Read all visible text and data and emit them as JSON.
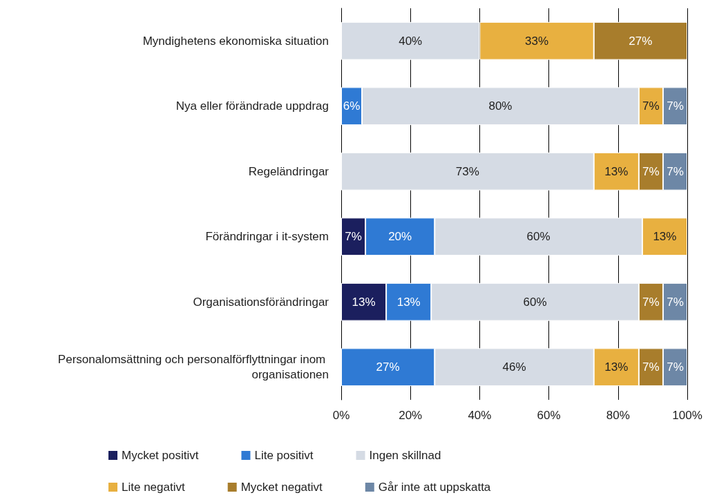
{
  "chart_data": {
    "type": "bar",
    "orientation": "horizontal",
    "stacked": true,
    "grid": "x",
    "legend": "bottom",
    "categories": [
      "Myndighetens ekonomiska situation",
      "Nya eller förändrade uppdrag",
      "Regeländringar",
      "Förändringar i it-system",
      "Organisationsförändringar",
      "Personalomsättning och personalförflyttningar inom organisationen"
    ],
    "xlim": [
      0,
      100
    ],
    "xticks": [
      {
        "value": 0,
        "label": "0%"
      },
      {
        "value": 20,
        "label": "20%"
      },
      {
        "value": 40,
        "label": "40%"
      },
      {
        "value": 60,
        "label": "60%"
      },
      {
        "value": 80,
        "label": "80%"
      },
      {
        "value": 100,
        "label": "100%"
      }
    ],
    "series": [
      {
        "name": "Mycket positivt",
        "color": "#1b1f5e",
        "values": [
          null,
          null,
          null,
          7,
          13,
          null
        ],
        "value_labels": [
          null,
          null,
          null,
          "7%",
          "13%",
          null
        ]
      },
      {
        "name": "Lite positivt",
        "color": "#2f7ad4",
        "values": [
          null,
          6,
          null,
          20,
          13,
          27
        ],
        "value_labels": [
          null,
          "6%",
          null,
          "20%",
          "13%",
          "27%"
        ]
      },
      {
        "name": "Ingen skillnad",
        "color": "#d5dbe4",
        "values": [
          40,
          80,
          73,
          60,
          60,
          46
        ],
        "value_labels": [
          "40%",
          "80%",
          "73%",
          "60%",
          "60%",
          "46%"
        ]
      },
      {
        "name": "Lite negativt",
        "color": "#e8b040",
        "values": [
          33,
          7,
          13,
          13,
          null,
          13
        ],
        "value_labels": [
          "33%",
          "7%",
          "13%",
          "13%",
          null,
          "13%"
        ]
      },
      {
        "name": "Mycket negativt",
        "color": "#a87d2c",
        "values": [
          27,
          null,
          7,
          null,
          7,
          7
        ],
        "value_labels": [
          "27%",
          null,
          "7%",
          null,
          "7%",
          "7%"
        ]
      },
      {
        "name": "Går inte att uppskatta",
        "color": "#6d87a6",
        "values": [
          null,
          7,
          7,
          null,
          7,
          7
        ],
        "value_labels": [
          null,
          "7%",
          "7%",
          null,
          "7%",
          "7%"
        ]
      }
    ]
  }
}
